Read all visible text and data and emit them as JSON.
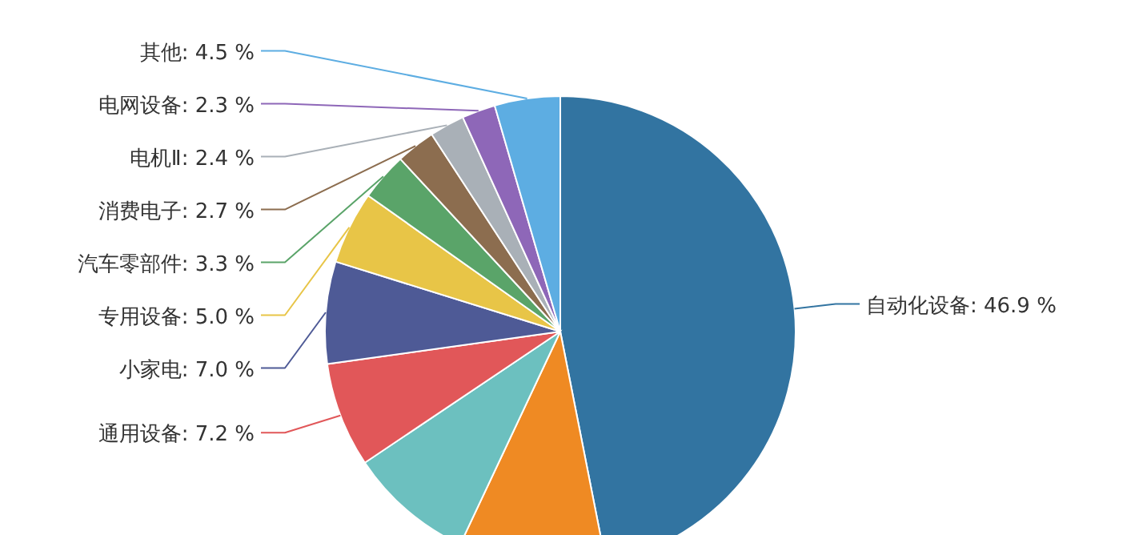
{
  "chart_data": {
    "type": "pie",
    "categories": [
      "自动化设备",
      null,
      null,
      "通用设备",
      "小家电",
      "专用设备",
      "汽车零部件",
      "消费电子",
      "电机Ⅱ",
      "电网设备",
      "其他"
    ],
    "values": [
      46.9,
      10.1,
      8.6,
      7.2,
      7.0,
      5.0,
      3.3,
      2.7,
      2.4,
      2.3,
      4.5
    ],
    "colors": [
      "#3274a1",
      "#ef8a23",
      "#6cc0bf",
      "#e15759",
      "#4e5a96",
      "#e8c547",
      "#5aa469",
      "#8c6d4f",
      "#a9b0b7",
      "#8e67b8",
      "#5dade2"
    ],
    "value_labels": [
      "46.9 %",
      null,
      null,
      "7.2 %",
      "7.0 %",
      "5.0 %",
      "3.3 %",
      "2.7 %",
      "2.4 %",
      "2.3 %",
      "4.5 %"
    ]
  }
}
